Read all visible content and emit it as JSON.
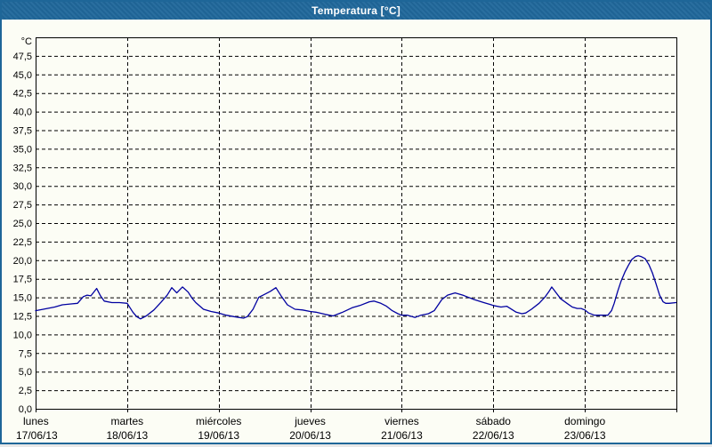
{
  "window": {
    "title": "Temperatura [°C]"
  },
  "colors": {
    "title_bar": "#20689b",
    "title_text": "#ffffff",
    "frame_border": "#1e6698",
    "background": "#fcfdf5",
    "grid": "#000000",
    "line": "#0000a0",
    "label_text": "#000000"
  },
  "chart_data": {
    "type": "line",
    "title": "Temperatura [°C]",
    "unit_label": "°C",
    "grid": "dashed",
    "legend": "none",
    "y_axis": {
      "min": 0,
      "max": 50,
      "tick_step": 2.5,
      "tick_labels": [
        "0,0",
        "2,5",
        "5,0",
        "7,5",
        "10,0",
        "12,5",
        "15,0",
        "17,5",
        "20,0",
        "22,5",
        "25,0",
        "27,5",
        "30,0",
        "32,5",
        "35,0",
        "37,5",
        "40,0",
        "42,5",
        "45,0",
        "47,5"
      ]
    },
    "x_axis": {
      "hours_total": 168,
      "days": [
        {
          "weekday": "lunes",
          "date": "17/06/13"
        },
        {
          "weekday": "martes",
          "date": "18/06/13"
        },
        {
          "weekday": "miércoles",
          "date": "19/06/13"
        },
        {
          "weekday": "jueves",
          "date": "20/06/13"
        },
        {
          "weekday": "viernes",
          "date": "21/06/13"
        },
        {
          "weekday": "sábado",
          "date": "22/06/13"
        },
        {
          "weekday": "domingo",
          "date": "23/06/13"
        }
      ]
    },
    "series": [
      {
        "name": "Temperatura",
        "color": "#0000a0",
        "points": [
          [
            0,
            13.2
          ],
          [
            2,
            13.4
          ],
          [
            5,
            13.7
          ],
          [
            7,
            14.0
          ],
          [
            9,
            14.1
          ],
          [
            11,
            14.2
          ],
          [
            12.5,
            15.1
          ],
          [
            13.5,
            15.3
          ],
          [
            14.5,
            15.2
          ],
          [
            16,
            16.2
          ],
          [
            17,
            15.2
          ],
          [
            18,
            14.5
          ],
          [
            20,
            14.3
          ],
          [
            22,
            14.3
          ],
          [
            24,
            14.2
          ],
          [
            25.5,
            13.0
          ],
          [
            26.5,
            12.4
          ],
          [
            27.5,
            12.1
          ],
          [
            29,
            12.5
          ],
          [
            31,
            13.3
          ],
          [
            33,
            14.4
          ],
          [
            34.5,
            15.3
          ],
          [
            35.7,
            16.3
          ],
          [
            37,
            15.6
          ],
          [
            38.5,
            16.4
          ],
          [
            40,
            15.7
          ],
          [
            41,
            14.9
          ],
          [
            42,
            14.3
          ],
          [
            44,
            13.4
          ],
          [
            46,
            13.1
          ],
          [
            48,
            12.9
          ],
          [
            50,
            12.6
          ],
          [
            52,
            12.4
          ],
          [
            54.5,
            12.2
          ],
          [
            55.5,
            12.4
          ],
          [
            57,
            13.4
          ],
          [
            58.5,
            15.0
          ],
          [
            60,
            15.4
          ],
          [
            61.5,
            15.8
          ],
          [
            63,
            16.3
          ],
          [
            64.5,
            15.1
          ],
          [
            66,
            14.0
          ],
          [
            68,
            13.4
          ],
          [
            70,
            13.3
          ],
          [
            72,
            13.1
          ],
          [
            73.5,
            13.0
          ],
          [
            76,
            12.7
          ],
          [
            78,
            12.5
          ],
          [
            80.5,
            13.0
          ],
          [
            83,
            13.6
          ],
          [
            85,
            13.9
          ],
          [
            87.5,
            14.4
          ],
          [
            88.7,
            14.5
          ],
          [
            90.5,
            14.2
          ],
          [
            92,
            13.8
          ],
          [
            93.5,
            13.2
          ],
          [
            95,
            12.8
          ],
          [
            96,
            12.6
          ],
          [
            97.5,
            12.6
          ],
          [
            99.5,
            12.3
          ],
          [
            101,
            12.6
          ],
          [
            103,
            12.8
          ],
          [
            104.5,
            13.2
          ],
          [
            106.5,
            14.7
          ],
          [
            108,
            15.3
          ],
          [
            110,
            15.6
          ],
          [
            112,
            15.3
          ],
          [
            113,
            15.1
          ],
          [
            115,
            14.7
          ],
          [
            117.5,
            14.3
          ],
          [
            119.5,
            14.0
          ],
          [
            120,
            13.9
          ],
          [
            122,
            13.7
          ],
          [
            123.5,
            13.8
          ],
          [
            126,
            13.0
          ],
          [
            127.5,
            12.8
          ],
          [
            128.5,
            12.9
          ],
          [
            130,
            13.4
          ],
          [
            132,
            14.2
          ],
          [
            133.5,
            15.0
          ],
          [
            134.6,
            15.8
          ],
          [
            135.3,
            16.4
          ],
          [
            136.5,
            15.6
          ],
          [
            137.7,
            14.8
          ],
          [
            139.3,
            14.2
          ],
          [
            140.7,
            13.7
          ],
          [
            142,
            13.5
          ],
          [
            143,
            13.5
          ],
          [
            144,
            13.3
          ],
          [
            145,
            12.9
          ],
          [
            146.5,
            12.6
          ],
          [
            148.5,
            12.6
          ],
          [
            150,
            12.6
          ],
          [
            151,
            13.2
          ],
          [
            151.7,
            14.2
          ],
          [
            152.6,
            15.8
          ],
          [
            153.5,
            17.2
          ],
          [
            154.5,
            18.4
          ],
          [
            155.4,
            19.3
          ],
          [
            156.3,
            20.1
          ],
          [
            157.3,
            20.5
          ],
          [
            158,
            20.6
          ],
          [
            158.7,
            20.5
          ],
          [
            159.8,
            20.2
          ],
          [
            160.8,
            19.4
          ],
          [
            161.7,
            18.3
          ],
          [
            162.6,
            16.9
          ],
          [
            163.6,
            15.3
          ],
          [
            164.5,
            14.4
          ],
          [
            165.2,
            14.2
          ],
          [
            166.1,
            14.2
          ],
          [
            167.9,
            14.3
          ]
        ]
      }
    ]
  }
}
